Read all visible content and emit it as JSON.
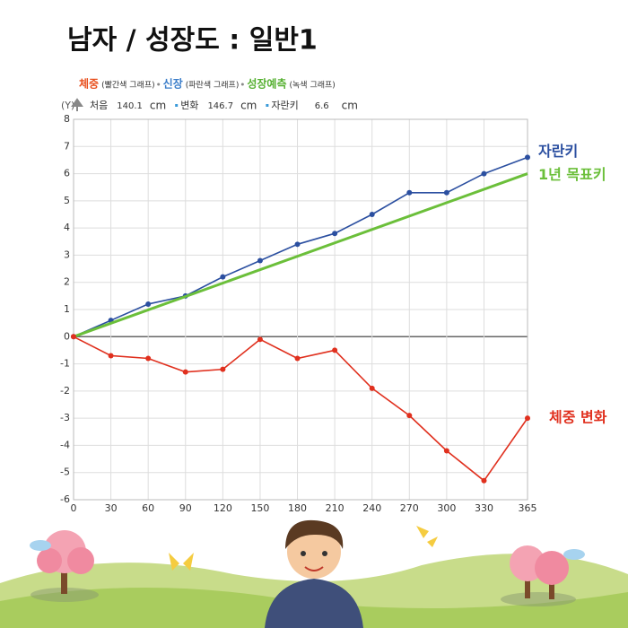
{
  "title": "남자 / 성장도 : 일반1",
  "legend": [
    {
      "name": "체중",
      "note": "(빨간색 그래프)",
      "color": "#e8501e"
    },
    {
      "name": "신장",
      "note": "(파란색 그래프)",
      "color": "#3a7dc9"
    },
    {
      "name": "성장예측",
      "note": "(녹색 그래프)",
      "color": "#55b030"
    }
  ],
  "info": {
    "axis": "(Y)",
    "items": [
      {
        "label": "처음",
        "value": 140.1,
        "unit": "cm"
      },
      {
        "label": "변화",
        "value": 146.7,
        "unit": "cm"
      },
      {
        "label": "자란키",
        "value": 6.6,
        "unit": "cm"
      }
    ]
  },
  "chart_data": {
    "type": "line",
    "x": [
      0,
      30,
      60,
      90,
      120,
      150,
      180,
      210,
      240,
      270,
      300,
      330,
      365
    ],
    "xlim": [
      0,
      365
    ],
    "xticks": [
      0,
      30,
      60,
      90,
      120,
      150,
      180,
      210,
      240,
      270,
      300,
      330,
      365
    ],
    "ylim": [
      -6,
      8
    ],
    "yticks": [
      -6,
      -5,
      -4,
      -3,
      -2,
      -1,
      0,
      1,
      2,
      3,
      4,
      5,
      6,
      7,
      8
    ],
    "grid": true,
    "series": [
      {
        "name": "자란키",
        "color": "#2b4fa0",
        "values": [
          0,
          0.6,
          1.2,
          1.5,
          2.2,
          2.8,
          3.4,
          3.8,
          4.5,
          5.3,
          5.3,
          6.0,
          6.6
        ]
      },
      {
        "name": "1년 목표키",
        "color": "#6bbf3a",
        "x": [
          0,
          365
        ],
        "values": [
          0,
          6
        ]
      },
      {
        "name": "체중 변화",
        "color": "#e0301e",
        "values": [
          0,
          -0.7,
          -0.8,
          -1.3,
          -1.2,
          -0.1,
          -0.8,
          -0.5,
          -1.9,
          -2.9,
          -4.2,
          -5.3,
          -3.0
        ]
      }
    ]
  }
}
